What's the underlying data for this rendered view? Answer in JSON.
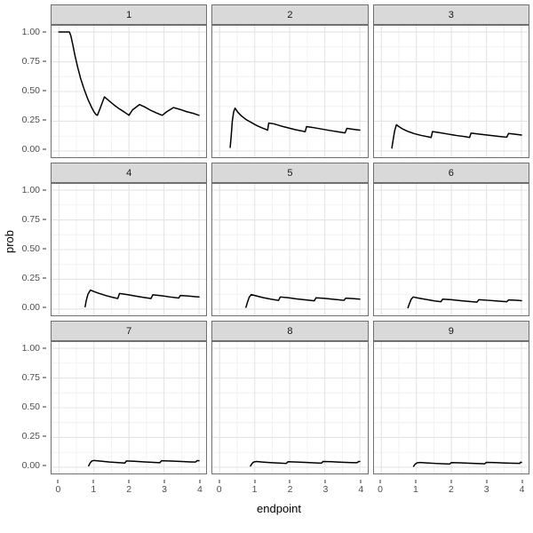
{
  "figure": {
    "kind": "faceted line chart (ggplot theme_bw style)",
    "x_title": "endpoint",
    "y_title": "prob"
  },
  "palette": {
    "line": "#000000",
    "panel_bg": "#ffffff",
    "plot_bg": "#ffffff",
    "strip_fill": "#d9d9d9",
    "strip_border": "#6f6f6f",
    "panel_border": "#6f6f6f",
    "grid_major": "#e4e4e4",
    "grid_minor": "#f1f1f1",
    "axis_text": "#4d4d4d",
    "tick_mark": "#333333",
    "title_text": "#000000"
  },
  "chart_data": {
    "type": "line",
    "title": "",
    "xlabel": "endpoint",
    "ylabel": "prob",
    "xlim": [
      0,
      4
    ],
    "ylim": [
      0,
      1
    ],
    "x_expansion": 0.21,
    "y_expansion": 0.0525,
    "x_ticks": [
      {
        "label": "0",
        "value": 0
      },
      {
        "label": "1",
        "value": 1
      },
      {
        "label": "2",
        "value": 2
      },
      {
        "label": "3",
        "value": 3
      },
      {
        "label": "4",
        "value": 4
      }
    ],
    "y_ticks": [
      {
        "label": "1.00",
        "value": 1.0
      },
      {
        "label": "0.75",
        "value": 0.75
      },
      {
        "label": "0.50",
        "value": 0.5
      },
      {
        "label": "0.25",
        "value": 0.25
      },
      {
        "label": "0.00",
        "value": 0.0
      }
    ],
    "x_minor_breaks": [
      0.5,
      1.5,
      2.5,
      3.5
    ],
    "y_minor_breaks": [
      0.125,
      0.375,
      0.625,
      0.875
    ],
    "grid": "major+minor",
    "legend": "none",
    "facet_labels": [
      "1",
      "2",
      "3",
      "4",
      "5",
      "6",
      "7",
      "8",
      "9"
    ],
    "facets": [
      {
        "label": "1",
        "points": [
          [
            0,
            1
          ],
          [
            0.3,
            1
          ],
          [
            0.34,
            0.97
          ],
          [
            0.4,
            0.89
          ],
          [
            0.46,
            0.8
          ],
          [
            0.54,
            0.7
          ],
          [
            0.62,
            0.61
          ],
          [
            0.72,
            0.52
          ],
          [
            0.82,
            0.44
          ],
          [
            0.92,
            0.375
          ],
          [
            1.0,
            0.33
          ],
          [
            1.06,
            0.305
          ],
          [
            1.1,
            0.3
          ],
          [
            1.18,
            0.36
          ],
          [
            1.3,
            0.455
          ],
          [
            1.42,
            0.425
          ],
          [
            1.56,
            0.39
          ],
          [
            1.72,
            0.355
          ],
          [
            1.88,
            0.325
          ],
          [
            2.0,
            0.3
          ],
          [
            2.1,
            0.345
          ],
          [
            2.3,
            0.39
          ],
          [
            2.45,
            0.37
          ],
          [
            2.6,
            0.345
          ],
          [
            2.78,
            0.32
          ],
          [
            2.95,
            0.3
          ],
          [
            3.08,
            0.33
          ],
          [
            3.27,
            0.365
          ],
          [
            3.45,
            0.35
          ],
          [
            3.65,
            0.33
          ],
          [
            3.85,
            0.315
          ],
          [
            4,
            0.3
          ]
        ]
      },
      {
        "label": "2",
        "points": [
          [
            0.3,
            0.03
          ],
          [
            0.33,
            0.13
          ],
          [
            0.36,
            0.25
          ],
          [
            0.4,
            0.33
          ],
          [
            0.44,
            0.36
          ],
          [
            0.52,
            0.325
          ],
          [
            0.62,
            0.295
          ],
          [
            0.75,
            0.265
          ],
          [
            0.9,
            0.24
          ],
          [
            1.05,
            0.215
          ],
          [
            1.2,
            0.195
          ],
          [
            1.33,
            0.18
          ],
          [
            1.37,
            0.175
          ],
          [
            1.4,
            0.235
          ],
          [
            1.55,
            0.228
          ],
          [
            1.75,
            0.21
          ],
          [
            1.95,
            0.195
          ],
          [
            2.15,
            0.18
          ],
          [
            2.35,
            0.168
          ],
          [
            2.44,
            0.162
          ],
          [
            2.48,
            0.205
          ],
          [
            2.65,
            0.198
          ],
          [
            2.9,
            0.185
          ],
          [
            3.15,
            0.172
          ],
          [
            3.4,
            0.16
          ],
          [
            3.58,
            0.152
          ],
          [
            3.63,
            0.19
          ],
          [
            3.8,
            0.183
          ],
          [
            4,
            0.175
          ]
        ]
      },
      {
        "label": "3",
        "points": [
          [
            0.3,
            0.025
          ],
          [
            0.34,
            0.1
          ],
          [
            0.38,
            0.17
          ],
          [
            0.43,
            0.22
          ],
          [
            0.5,
            0.205
          ],
          [
            0.62,
            0.183
          ],
          [
            0.78,
            0.162
          ],
          [
            0.95,
            0.145
          ],
          [
            1.15,
            0.13
          ],
          [
            1.35,
            0.118
          ],
          [
            1.42,
            0.113
          ],
          [
            1.46,
            0.163
          ],
          [
            1.65,
            0.155
          ],
          [
            1.9,
            0.142
          ],
          [
            2.15,
            0.13
          ],
          [
            2.4,
            0.12
          ],
          [
            2.52,
            0.114
          ],
          [
            2.56,
            0.15
          ],
          [
            2.8,
            0.142
          ],
          [
            3.1,
            0.131
          ],
          [
            3.4,
            0.121
          ],
          [
            3.58,
            0.116
          ],
          [
            3.63,
            0.147
          ],
          [
            3.85,
            0.14
          ],
          [
            4,
            0.134
          ]
        ]
      },
      {
        "label": "4",
        "points": [
          [
            0.75,
            0.02
          ],
          [
            0.78,
            0.07
          ],
          [
            0.83,
            0.125
          ],
          [
            0.9,
            0.16
          ],
          [
            1.0,
            0.148
          ],
          [
            1.15,
            0.132
          ],
          [
            1.35,
            0.113
          ],
          [
            1.55,
            0.098
          ],
          [
            1.68,
            0.089
          ],
          [
            1.73,
            0.131
          ],
          [
            1.95,
            0.122
          ],
          [
            2.2,
            0.109
          ],
          [
            2.45,
            0.097
          ],
          [
            2.63,
            0.089
          ],
          [
            2.68,
            0.12
          ],
          [
            2.95,
            0.112
          ],
          [
            3.2,
            0.101
          ],
          [
            3.42,
            0.093
          ],
          [
            3.47,
            0.115
          ],
          [
            3.7,
            0.11
          ],
          [
            3.9,
            0.104
          ],
          [
            4,
            0.102
          ]
        ]
      },
      {
        "label": "5",
        "points": [
          [
            0.75,
            0.015
          ],
          [
            0.79,
            0.055
          ],
          [
            0.84,
            0.098
          ],
          [
            0.9,
            0.122
          ],
          [
            1.05,
            0.111
          ],
          [
            1.25,
            0.096
          ],
          [
            1.48,
            0.083
          ],
          [
            1.68,
            0.073
          ],
          [
            1.73,
            0.102
          ],
          [
            1.95,
            0.096
          ],
          [
            2.2,
            0.086
          ],
          [
            2.5,
            0.076
          ],
          [
            2.7,
            0.07
          ],
          [
            2.75,
            0.095
          ],
          [
            3.0,
            0.09
          ],
          [
            3.3,
            0.081
          ],
          [
            3.55,
            0.074
          ],
          [
            3.6,
            0.092
          ],
          [
            3.8,
            0.088
          ],
          [
            4,
            0.084
          ]
        ]
      },
      {
        "label": "6",
        "points": [
          [
            0.76,
            0.012
          ],
          [
            0.8,
            0.045
          ],
          [
            0.85,
            0.082
          ],
          [
            0.91,
            0.102
          ],
          [
            1.05,
            0.093
          ],
          [
            1.3,
            0.08
          ],
          [
            1.52,
            0.069
          ],
          [
            1.7,
            0.062
          ],
          [
            1.75,
            0.084
          ],
          [
            2.0,
            0.079
          ],
          [
            2.3,
            0.07
          ],
          [
            2.55,
            0.063
          ],
          [
            2.73,
            0.059
          ],
          [
            2.78,
            0.079
          ],
          [
            3.05,
            0.074
          ],
          [
            3.35,
            0.067
          ],
          [
            3.58,
            0.062
          ],
          [
            3.63,
            0.077
          ],
          [
            3.85,
            0.074
          ],
          [
            4,
            0.071
          ]
        ]
      },
      {
        "label": "7",
        "points": [
          [
            0.85,
            0.012
          ],
          [
            0.89,
            0.035
          ],
          [
            0.94,
            0.052
          ],
          [
            1.0,
            0.057
          ],
          [
            1.2,
            0.051
          ],
          [
            1.45,
            0.044
          ],
          [
            1.7,
            0.039
          ],
          [
            1.88,
            0.035
          ],
          [
            1.93,
            0.053
          ],
          [
            2.15,
            0.05
          ],
          [
            2.45,
            0.045
          ],
          [
            2.7,
            0.041
          ],
          [
            2.88,
            0.038
          ],
          [
            2.93,
            0.055
          ],
          [
            3.2,
            0.052
          ],
          [
            3.5,
            0.048
          ],
          [
            3.75,
            0.045
          ],
          [
            3.9,
            0.044
          ],
          [
            3.95,
            0.056
          ],
          [
            4,
            0.055
          ]
        ]
      },
      {
        "label": "8",
        "points": [
          [
            0.88,
            0.01
          ],
          [
            0.92,
            0.03
          ],
          [
            0.97,
            0.044
          ],
          [
            1.05,
            0.048
          ],
          [
            1.25,
            0.043
          ],
          [
            1.5,
            0.038
          ],
          [
            1.75,
            0.034
          ],
          [
            1.9,
            0.032
          ],
          [
            1.95,
            0.046
          ],
          [
            2.2,
            0.044
          ],
          [
            2.5,
            0.04
          ],
          [
            2.75,
            0.036
          ],
          [
            2.9,
            0.034
          ],
          [
            2.95,
            0.048
          ],
          [
            3.2,
            0.046
          ],
          [
            3.5,
            0.042
          ],
          [
            3.75,
            0.039
          ],
          [
            3.92,
            0.038
          ],
          [
            3.97,
            0.048
          ],
          [
            4,
            0.048
          ]
        ]
      },
      {
        "label": "9",
        "points": [
          [
            0.92,
            0.008
          ],
          [
            0.96,
            0.025
          ],
          [
            1.02,
            0.037
          ],
          [
            1.1,
            0.04
          ],
          [
            1.3,
            0.036
          ],
          [
            1.55,
            0.032
          ],
          [
            1.8,
            0.029
          ],
          [
            1.95,
            0.027
          ],
          [
            2.0,
            0.039
          ],
          [
            2.25,
            0.037
          ],
          [
            2.55,
            0.033
          ],
          [
            2.8,
            0.031
          ],
          [
            2.95,
            0.029
          ],
          [
            3.0,
            0.041
          ],
          [
            3.25,
            0.039
          ],
          [
            3.55,
            0.035
          ],
          [
            3.8,
            0.033
          ],
          [
            3.95,
            0.032
          ],
          [
            3.97,
            0.042
          ],
          [
            4,
            0.041
          ]
        ]
      }
    ]
  }
}
